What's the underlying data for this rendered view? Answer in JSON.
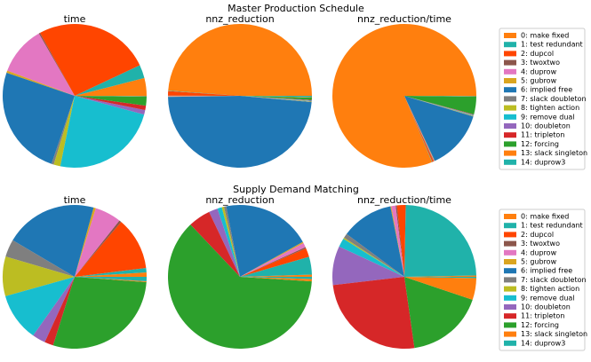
{
  "chart_data": [
    {
      "type": "pie",
      "title": "Master Production Schedule",
      "legend": {
        "labels": [
          "0: make fixed",
          "1: test redundant",
          "2: dupcol",
          "3: twoxtwo",
          "4: duprow",
          "5: gubrow",
          "6: implied free",
          "7: slack doubleton",
          "8: tighten action",
          "9: remove dual",
          "10: doubleton",
          "11: tripleton",
          "12: forcing",
          "13: slack singleton",
          "14: duprow3"
        ],
        "colors": [
          "#ff7f0e",
          "#20b2aa",
          "#ff4500",
          "#8c564b",
          "#e377c2",
          "#daa520",
          "#1f77b4",
          "#7f7f7f",
          "#bcbd22",
          "#17becf",
          "#9467bd",
          "#d62728",
          "#2ca02c",
          "#ff7f0e",
          "#20b2aa"
        ]
      },
      "pies": [
        {
          "title": "time",
          "values": [
            4,
            3,
            26,
            0.3,
            11,
            0.5,
            25,
            0.5,
            1.5,
            24,
            1,
            1,
            2,
            0.1,
            0.1
          ]
        },
        {
          "title": "nnz_reduction",
          "values": [
            49,
            0.1,
            1,
            0.1,
            0.1,
            0.1,
            48.5,
            0.1,
            0.1,
            0.1,
            0.1,
            0.1,
            0.5,
            0.1,
            0.3
          ]
        },
        {
          "title": "nnz_reduction/time",
          "values": [
            82,
            0.1,
            0.3,
            0.1,
            0.1,
            0.1,
            13.5,
            0.1,
            0.1,
            0.1,
            0.1,
            0.1,
            4,
            0.1,
            0.1
          ]
        }
      ]
    },
    {
      "type": "pie",
      "title": "Supply Demand Matching",
      "legend": {
        "labels": [
          "0: make fixed",
          "1: test redundant",
          "2: dupcol",
          "3: twoxtwo",
          "4: duprow",
          "5: gubrow",
          "6: implied free",
          "7: slack doubleton",
          "8: tighten action",
          "9: remove dual",
          "10: doubleton",
          "11: tripleton",
          "12: forcing",
          "13: slack singleton",
          "14: duprow3"
        ],
        "colors": [
          "#ff7f0e",
          "#20b2aa",
          "#ff4500",
          "#8c564b",
          "#e377c2",
          "#daa520",
          "#1f77b4",
          "#7f7f7f",
          "#bcbd22",
          "#17becf",
          "#9467bd",
          "#d62728",
          "#2ca02c",
          "#ff7f0e",
          "#20b2aa"
        ]
      },
      "pies": [
        {
          "title": "time",
          "values": [
            1,
            1,
            12,
            0.5,
            6,
            0.5,
            21,
            4,
            9,
            11,
            3,
            2,
            29,
            0.2,
            1
          ]
        },
        {
          "title": "nnz_reduction",
          "values": [
            0.5,
            4,
            2,
            0.3,
            1,
            0.3,
            20,
            0.5,
            0.5,
            1,
            2,
            5,
            62,
            0.5,
            0.5
          ]
        },
        {
          "title": "nnz_reduction/time",
          "values": [
            0.3,
            25,
            2,
            0.3,
            1,
            0.2,
            12,
            1,
            0.3,
            2,
            9,
            26,
            18,
            5,
            0.3
          ]
        }
      ]
    }
  ]
}
